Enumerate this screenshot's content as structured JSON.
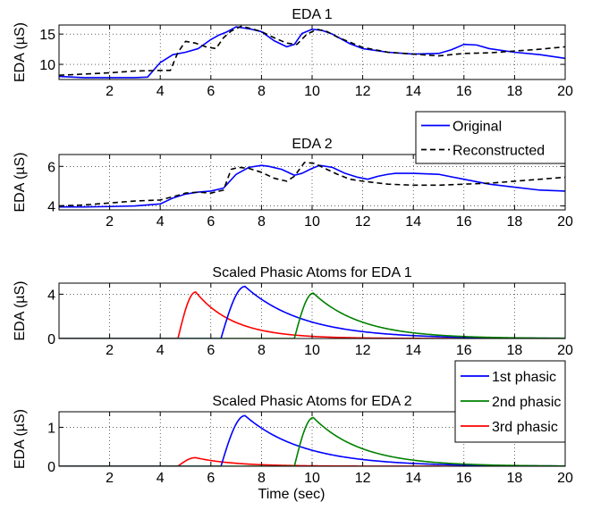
{
  "figure": {
    "xlabel": "Time (sec)"
  },
  "chart_data": [
    {
      "type": "line",
      "title": "EDA 1",
      "xlabel": "",
      "ylabel": "EDA (µS)",
      "xlim": [
        0,
        20
      ],
      "ylim": [
        7.5,
        16.5
      ],
      "xticks": [
        2,
        4,
        6,
        8,
        10,
        12,
        14,
        16,
        18,
        20
      ],
      "yticks": [
        10,
        15
      ],
      "grid": true,
      "legend": {
        "entries": [
          "Original",
          "Reconstructed"
        ],
        "placement": "below-right"
      },
      "series": [
        {
          "name": "Original",
          "color": "#0000ff",
          "dash": "solid",
          "x": [
            0,
            1,
            2,
            3,
            3.5,
            4,
            4.5,
            5,
            5.5,
            6,
            6.3,
            6.6,
            7,
            7.3,
            7.6,
            8,
            8.5,
            9,
            9.3,
            9.6,
            10,
            10.4,
            10.8,
            11.5,
            12,
            13,
            14,
            15,
            15.5,
            16,
            16.5,
            17,
            18,
            19,
            20
          ],
          "y": [
            8.0,
            7.8,
            7.8,
            7.8,
            7.9,
            10.3,
            11.6,
            12.0,
            12.6,
            14.1,
            14.8,
            15.3,
            16.2,
            16.0,
            15.8,
            15.4,
            13.9,
            12.9,
            13.3,
            15.1,
            15.8,
            15.6,
            15.0,
            13.4,
            12.6,
            12.0,
            11.7,
            11.8,
            12.4,
            13.3,
            13.2,
            12.6,
            12.0,
            11.6,
            11.0
          ]
        },
        {
          "name": "Reconstructed",
          "color": "#000000",
          "dash": "dashed",
          "x": [
            0,
            1,
            2,
            3,
            4,
            4.4,
            4.7,
            5,
            5.4,
            5.8,
            6.2,
            6.5,
            6.8,
            7.2,
            7.6,
            8,
            8.5,
            9,
            9.4,
            9.8,
            10.2,
            10.6,
            11,
            12,
            13,
            14,
            15,
            16,
            17,
            18,
            19,
            20
          ],
          "y": [
            8.2,
            8.4,
            8.6,
            8.9,
            9.0,
            9.0,
            12.0,
            13.8,
            13.5,
            12.9,
            12.6,
            14.4,
            15.5,
            16.3,
            15.9,
            15.4,
            14.4,
            13.5,
            13.3,
            15.0,
            15.8,
            15.4,
            14.5,
            12.8,
            12.0,
            11.7,
            11.4,
            11.8,
            11.9,
            12.2,
            12.5,
            12.9
          ]
        }
      ]
    },
    {
      "type": "line",
      "title": "EDA 2",
      "xlabel": "",
      "ylabel": "EDA (µS)",
      "xlim": [
        0,
        20
      ],
      "ylim": [
        3.8,
        6.6
      ],
      "xticks": [
        2,
        4,
        6,
        8,
        10,
        12,
        14,
        16,
        18,
        20
      ],
      "yticks": [
        4,
        6
      ],
      "grid": true,
      "series": [
        {
          "name": "Original",
          "color": "#0000ff",
          "dash": "solid",
          "x": [
            0,
            1,
            2,
            3,
            4,
            4.5,
            5,
            5.5,
            6,
            6.5,
            7,
            7.5,
            8,
            8.3,
            8.8,
            9.3,
            9.6,
            10,
            10.3,
            10.8,
            11.3,
            11.8,
            12.2,
            12.6,
            13,
            13.3,
            14,
            15,
            16,
            17,
            18,
            19,
            20
          ],
          "y": [
            3.95,
            3.95,
            3.97,
            4.0,
            4.1,
            4.4,
            4.6,
            4.7,
            4.75,
            4.9,
            5.6,
            5.95,
            6.05,
            6.0,
            5.85,
            5.55,
            5.65,
            5.9,
            6.05,
            5.95,
            5.65,
            5.45,
            5.35,
            5.5,
            5.6,
            5.65,
            5.65,
            5.6,
            5.35,
            5.1,
            4.95,
            4.8,
            4.75
          ]
        },
        {
          "name": "Reconstructed",
          "color": "#000000",
          "dash": "dashed",
          "x": [
            0,
            1,
            2,
            3,
            4,
            4.6,
            5,
            5.5,
            6,
            6.5,
            6.8,
            7.1,
            7.5,
            8,
            8.5,
            9,
            9.3,
            9.7,
            10.1,
            10.5,
            11,
            11.5,
            12,
            13,
            14,
            15,
            16,
            17,
            18,
            19,
            20
          ],
          "y": [
            4.0,
            4.05,
            4.15,
            4.25,
            4.3,
            4.5,
            4.65,
            4.7,
            4.65,
            4.8,
            5.85,
            5.95,
            5.9,
            5.7,
            5.4,
            5.25,
            5.5,
            6.2,
            6.15,
            5.9,
            5.6,
            5.35,
            5.25,
            5.1,
            5.05,
            5.05,
            5.1,
            5.15,
            5.25,
            5.35,
            5.45
          ]
        }
      ]
    },
    {
      "type": "line",
      "title": "Scaled Phasic Atoms for EDA 1",
      "xlabel": "",
      "ylabel": "EDA (µS)",
      "xlim": [
        0,
        20
      ],
      "ylim": [
        0,
        5
      ],
      "xticks": [
        2,
        4,
        6,
        8,
        10,
        12,
        14,
        16,
        18,
        20
      ],
      "yticks": [
        0,
        4
      ],
      "grid": true,
      "series": [
        {
          "name": "3rd phasic",
          "color": "#ff0000",
          "dash": "solid",
          "onset": 4.7,
          "peak": 5.4,
          "amplitude": 4.2,
          "decay": 1.5,
          "x_end": 20
        },
        {
          "name": "1st phasic",
          "color": "#0000ff",
          "dash": "solid",
          "onset": 6.4,
          "peak": 7.35,
          "amplitude": 4.7,
          "decay": 2.3,
          "x_end": 20
        },
        {
          "name": "2nd phasic",
          "color": "#008000",
          "dash": "solid",
          "onset": 9.3,
          "peak": 10.05,
          "amplitude": 4.1,
          "decay": 1.9,
          "x_end": 20
        }
      ]
    },
    {
      "type": "line",
      "title": "Scaled Phasic Atoms for EDA 2",
      "xlabel": "Time (sec)",
      "ylabel": "EDA (µS)",
      "xlim": [
        0,
        20
      ],
      "ylim": [
        0,
        1.4
      ],
      "xticks": [
        2,
        4,
        6,
        8,
        10,
        12,
        14,
        16,
        18,
        20
      ],
      "yticks": [
        0,
        1
      ],
      "grid": true,
      "legend": {
        "entries": [
          "1st phasic",
          "2nd phasic",
          "3rd phasic"
        ],
        "placement": "above-right"
      },
      "series": [
        {
          "name": "3rd phasic",
          "color": "#ff0000",
          "dash": "solid",
          "onset": 4.7,
          "peak": 5.4,
          "amplitude": 0.22,
          "decay": 1.5,
          "x_end": 20
        },
        {
          "name": "1st phasic",
          "color": "#0000ff",
          "dash": "solid",
          "onset": 6.4,
          "peak": 7.35,
          "amplitude": 1.3,
          "decay": 2.3,
          "x_end": 20
        },
        {
          "name": "2nd phasic",
          "color": "#008000",
          "dash": "solid",
          "onset": 9.3,
          "peak": 10.05,
          "amplitude": 1.25,
          "decay": 1.9,
          "x_end": 20
        }
      ]
    }
  ],
  "legends": {
    "reconstruction": {
      "entries": [
        {
          "label": "Original",
          "color": "#0000ff",
          "dash": "solid"
        },
        {
          "label": "Reconstructed",
          "color": "#000000",
          "dash": "dashed"
        }
      ]
    },
    "phasic": {
      "entries": [
        {
          "label": "1st phasic",
          "color": "#0000ff",
          "dash": "solid"
        },
        {
          "label": "2nd phasic",
          "color": "#008000",
          "dash": "solid"
        },
        {
          "label": "3rd phasic",
          "color": "#ff0000",
          "dash": "solid"
        }
      ]
    }
  }
}
